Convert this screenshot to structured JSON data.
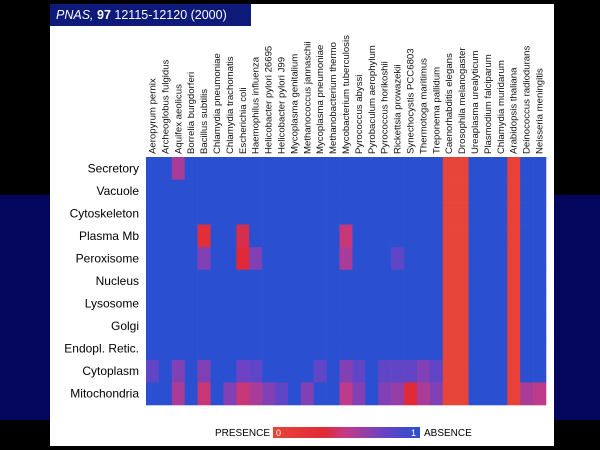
{
  "header": {
    "journal": "PNAS,",
    "volume": "97",
    "pages": "12115-12120 (2000)"
  },
  "colors": {
    "presence": "#e8453a",
    "absence": "#2a4fd0"
  },
  "chart_data": {
    "type": "heatmap",
    "columns": [
      "Aeropyrum pernix",
      "Archeoglobus fulgidus",
      "Aquifex aeolicus",
      "Borrelia burgdorferi",
      "Bacillus subtilis",
      "Chlamydia pneumoniae",
      "Chlamydia trachomatis",
      "Escherichia coli",
      "Haemophilus influenza",
      "Helicobacter pylori 26695",
      "Helicobacter pylori J99",
      "Mycoplasma genitalium",
      "Methanococcus jannaschii",
      "Mycoplasma pneumoniae",
      "Methanobacterium thermo",
      "Mycobacterium tuberculosis",
      "Pyrococcus abyssi",
      "Pyrobaculum aerophylum",
      "Pyrococcus horikoshii",
      "Rickettsia prowazekii",
      "Synechocystis PCC6803",
      "Thermotoga maritimus",
      "Treponema pallidum",
      "Caenorhabditis elegans",
      "Drosophila melanogaster",
      "Ureaplasma urealyticum",
      "Plasmodium falciparum",
      "Chlamydia muridarum",
      "Arabidopsis thaliana",
      "Deinococcus radiodurans",
      "Neisseria meningitis"
    ],
    "rows": [
      "Secretory",
      "Vacuole",
      "Cytoskeleton",
      "Plasma Mb",
      "Peroxisome",
      "Nucleus",
      "Lysosome",
      "Golgi",
      "Endopl. Retic.",
      "Cytoplasm",
      "Mitochondria"
    ],
    "values": [
      [
        1.0,
        1.0,
        0.6,
        1.0,
        1.0,
        1.0,
        1.0,
        1.0,
        1.0,
        1.0,
        1.0,
        1.0,
        1.0,
        1.0,
        1.0,
        1.0,
        1.0,
        1.0,
        1.0,
        1.0,
        1.0,
        1.0,
        1.0,
        0.0,
        0.0,
        1.0,
        1.0,
        1.0,
        0.05,
        1.0,
        1.0
      ],
      [
        1.0,
        1.0,
        1.0,
        1.0,
        1.0,
        1.0,
        1.0,
        1.0,
        1.0,
        1.0,
        1.0,
        1.0,
        1.0,
        1.0,
        1.0,
        1.0,
        1.0,
        1.0,
        1.0,
        1.0,
        1.0,
        1.0,
        1.0,
        0.0,
        0.0,
        1.0,
        1.0,
        1.0,
        0.05,
        1.0,
        1.0
      ],
      [
        1.0,
        1.0,
        1.0,
        1.0,
        1.0,
        1.0,
        1.0,
        1.0,
        1.0,
        1.0,
        1.0,
        1.0,
        1.0,
        1.0,
        1.0,
        1.0,
        1.0,
        1.0,
        1.0,
        1.0,
        1.0,
        1.0,
        1.0,
        0.0,
        0.0,
        1.0,
        1.0,
        1.0,
        0.05,
        1.0,
        1.0
      ],
      [
        1.0,
        1.0,
        1.0,
        1.0,
        0.3,
        1.0,
        1.0,
        0.4,
        1.0,
        1.0,
        1.0,
        1.0,
        1.0,
        1.0,
        1.0,
        0.5,
        1.0,
        1.0,
        1.0,
        1.0,
        1.0,
        1.0,
        1.0,
        0.0,
        0.0,
        1.0,
        1.0,
        1.0,
        0.05,
        1.0,
        1.0
      ],
      [
        1.0,
        1.0,
        1.0,
        1.0,
        0.7,
        1.0,
        1.0,
        0.35,
        0.7,
        1.0,
        1.0,
        1.0,
        1.0,
        1.0,
        1.0,
        0.6,
        1.0,
        1.0,
        1.0,
        0.8,
        1.0,
        1.0,
        1.0,
        0.0,
        0.0,
        1.0,
        1.0,
        1.0,
        0.05,
        1.0,
        1.0
      ],
      [
        1.0,
        1.0,
        1.0,
        1.0,
        1.0,
        1.0,
        1.0,
        1.0,
        1.0,
        1.0,
        1.0,
        1.0,
        1.0,
        1.0,
        1.0,
        1.0,
        1.0,
        1.0,
        1.0,
        1.0,
        1.0,
        1.0,
        1.0,
        0.0,
        0.0,
        1.0,
        1.0,
        1.0,
        0.05,
        1.0,
        1.0
      ],
      [
        1.0,
        1.0,
        1.0,
        1.0,
        1.0,
        1.0,
        1.0,
        1.0,
        1.0,
        1.0,
        1.0,
        1.0,
        1.0,
        1.0,
        1.0,
        1.0,
        1.0,
        1.0,
        1.0,
        1.0,
        1.0,
        1.0,
        1.0,
        0.0,
        0.0,
        1.0,
        1.0,
        1.0,
        0.05,
        1.0,
        1.0
      ],
      [
        1.0,
        1.0,
        1.0,
        1.0,
        1.0,
        1.0,
        1.0,
        1.0,
        1.0,
        1.0,
        1.0,
        1.0,
        1.0,
        1.0,
        1.0,
        1.0,
        1.0,
        1.0,
        1.0,
        1.0,
        1.0,
        1.0,
        1.0,
        0.0,
        0.0,
        1.0,
        1.0,
        1.0,
        0.05,
        1.0,
        1.0
      ],
      [
        1.0,
        1.0,
        1.0,
        1.0,
        1.0,
        1.0,
        1.0,
        1.0,
        1.0,
        1.0,
        1.0,
        1.0,
        1.0,
        1.0,
        1.0,
        1.0,
        1.0,
        1.0,
        1.0,
        1.0,
        1.0,
        1.0,
        1.0,
        0.0,
        0.0,
        1.0,
        1.0,
        1.0,
        0.05,
        1.0,
        1.0
      ],
      [
        0.8,
        1.0,
        0.7,
        1.0,
        0.7,
        1.0,
        1.0,
        0.75,
        0.8,
        1.0,
        1.0,
        1.0,
        1.0,
        0.8,
        1.0,
        0.7,
        0.8,
        1.0,
        0.8,
        0.8,
        0.8,
        0.7,
        0.8,
        0.0,
        0.0,
        1.0,
        1.0,
        1.0,
        0.05,
        1.0,
        1.0
      ],
      [
        1.0,
        1.0,
        0.6,
        1.0,
        0.5,
        1.0,
        0.7,
        0.5,
        0.6,
        0.7,
        0.8,
        1.0,
        0.7,
        1.0,
        1.0,
        0.55,
        0.7,
        1.0,
        0.7,
        0.65,
        0.35,
        0.6,
        0.7,
        0.0,
        0.0,
        1.0,
        1.0,
        1.0,
        0.05,
        0.6,
        0.55
      ]
    ],
    "legend": {
      "low_label": "PRESENCE",
      "high_label": "ABSENCE",
      "min_tick": "0",
      "max_tick": "1"
    }
  }
}
